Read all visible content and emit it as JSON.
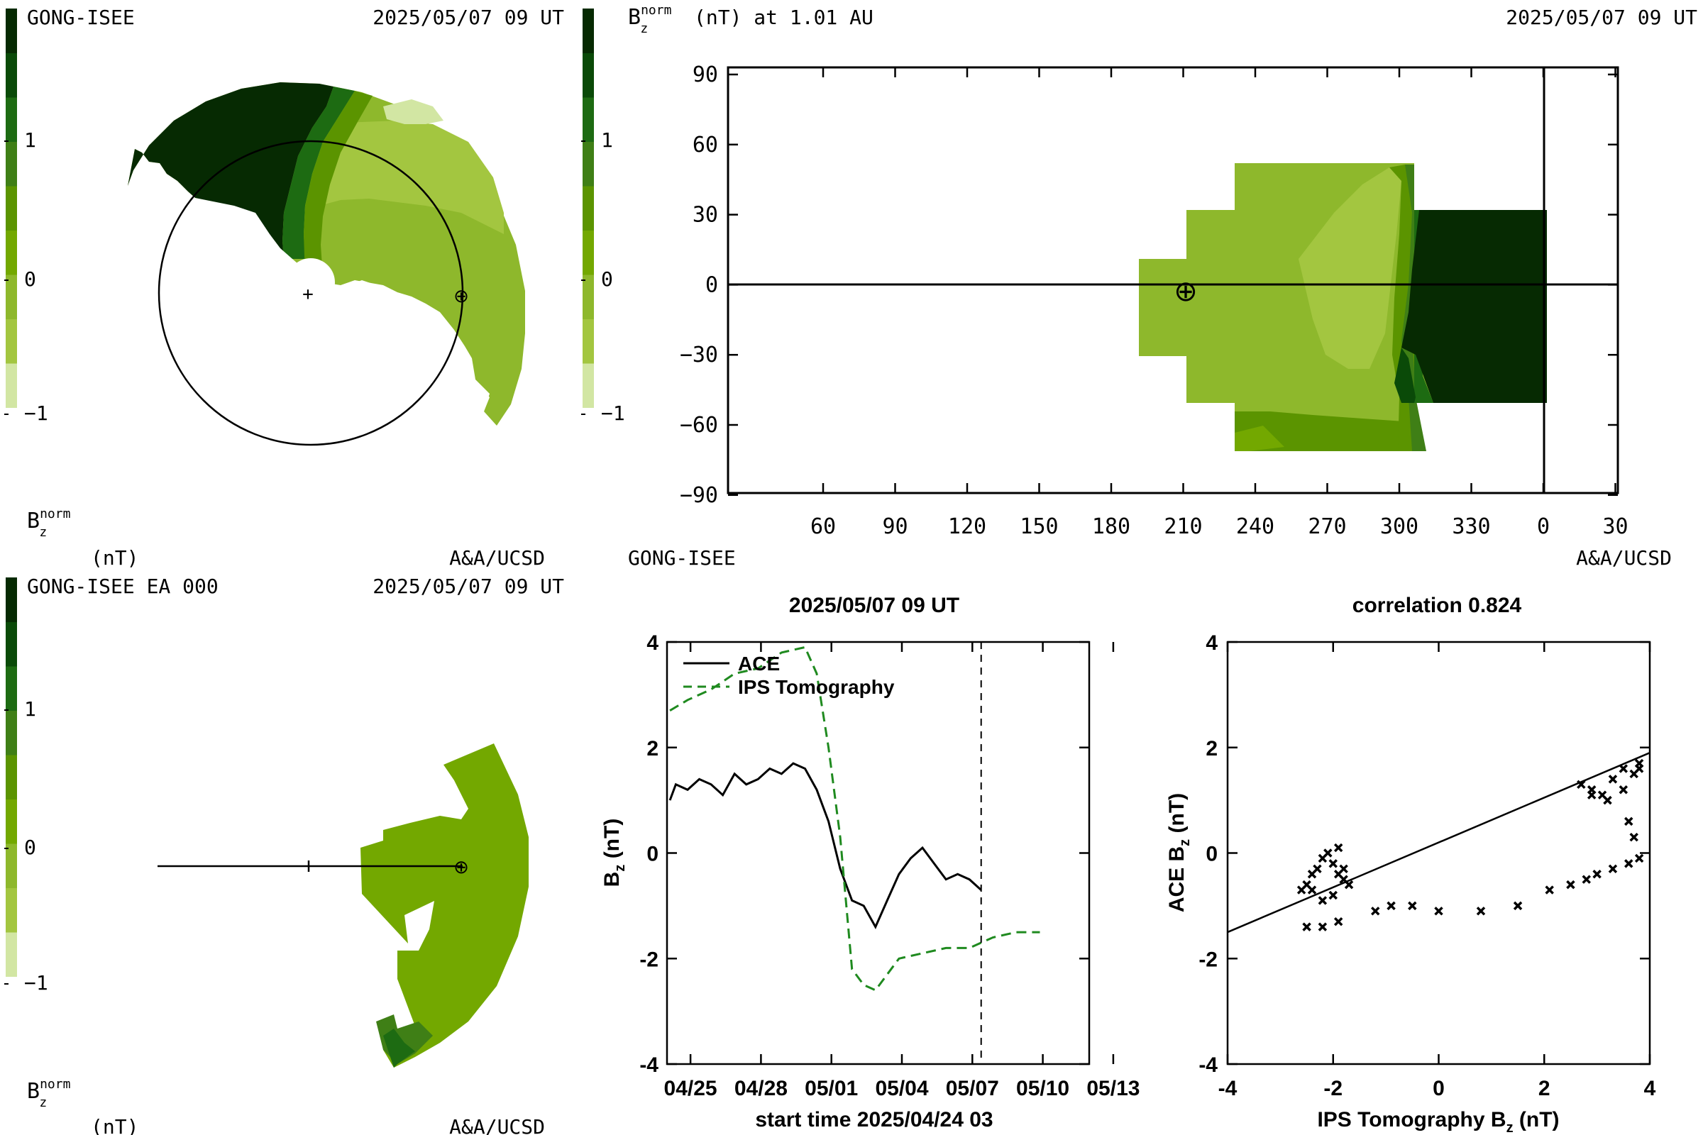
{
  "colors": {
    "scale": [
      "#d2e6a3",
      "#a3c640",
      "#8eb82c",
      "#73a800",
      "#5b9400",
      "#3f7f16",
      "#1d6b12",
      "#0a4a08",
      "#062a02"
    ],
    "ink": "#000000",
    "dash": "#1f8a1f"
  },
  "p1": {
    "label_left": "GONG-ISEE",
    "date": "2025/05/07 09 UT",
    "footer_unit": "(nT)",
    "footer_right": "A&A/UCSD",
    "cb_ticks": [
      "1",
      "0",
      "−1"
    ],
    "center_mark": "+",
    "earth_symbol": "⊕"
  },
  "p2": {
    "title_unit": "(nT) at 1.01 AU",
    "date": "2025/05/07 09 UT",
    "footer_left": "GONG-ISEE",
    "footer_right": "A&A/UCSD",
    "cb_ticks": [
      "1",
      "0",
      "−1"
    ],
    "y_ticks": [
      "90",
      "60",
      "30",
      "0",
      "−30",
      "−60",
      "−90"
    ],
    "x_ticks": [
      "60",
      "90",
      "120",
      "150",
      "180",
      "210",
      "240",
      "270",
      "300",
      "330",
      "0",
      "30"
    ],
    "earth_symbol": "⊕"
  },
  "p3": {
    "label_left": "GONG-ISEE EA 000",
    "date": "2025/05/07 09 UT",
    "footer_unit": "(nT)",
    "footer_right": "A&A/UCSD",
    "cb_ticks": [
      "1",
      "0",
      "−1"
    ],
    "earth_symbol": "⊕"
  },
  "chart_data": [
    {
      "type": "line",
      "title": "2025/05/07 09 UT",
      "xlabel": "start time 2025/04/24 03",
      "ylabel": "Bz (nT)",
      "x_tick_labels": [
        "04/25",
        "04/28",
        "05/01",
        "05/04",
        "05/07",
        "05/10",
        "05/13"
      ],
      "y_tick_labels": [
        "4",
        "2",
        "0",
        "-2",
        "-4"
      ],
      "ylim": [
        -4,
        4
      ],
      "legend_placement": "top-left",
      "series": [
        {
          "name": "ACE",
          "style": "solid",
          "x": [
            "04/24 03",
            "04/24 09",
            "04/24 21",
            "04/25 09",
            "04/25 21",
            "04/26 09",
            "04/26 21",
            "04/27 09",
            "04/27 21",
            "04/28 09",
            "04/28 21",
            "04/29 09",
            "04/29 21",
            "04/30 09",
            "04/30 21",
            "05/01 09",
            "05/01 21",
            "05/02 09",
            "05/02 21",
            "05/03 09",
            "05/03 21",
            "05/04 09",
            "05/04 21",
            "05/05 09",
            "05/05 21",
            "05/06 09",
            "05/06 21",
            "05/07 09"
          ],
          "values": [
            1.0,
            1.3,
            1.2,
            1.4,
            1.3,
            1.1,
            1.5,
            1.3,
            1.4,
            1.6,
            1.5,
            1.7,
            1.6,
            1.2,
            0.6,
            -0.3,
            -0.9,
            -1.0,
            -1.4,
            -0.9,
            -0.4,
            -0.1,
            0.1,
            -0.2,
            -0.5,
            -0.4,
            -0.5,
            -0.7
          ]
        },
        {
          "name": "IPS Tomography",
          "style": "dashed",
          "x": [
            "04/24 03",
            "04/24 21",
            "04/25 21",
            "04/26 21",
            "04/27 21",
            "04/28 21",
            "04/29 21",
            "04/30 09",
            "04/30 21",
            "05/01 09",
            "05/01 21",
            "05/02 09",
            "05/02 21",
            "05/03 09",
            "05/03 21",
            "05/04 21",
            "05/05 21",
            "05/06 21",
            "05/07 21",
            "05/08 21",
            "05/09 21"
          ],
          "values": [
            2.7,
            2.9,
            3.1,
            3.4,
            3.5,
            3.8,
            3.9,
            3.4,
            2.0,
            0.3,
            -2.2,
            -2.5,
            -2.6,
            -2.3,
            -2.0,
            -1.9,
            -1.8,
            -1.8,
            -1.6,
            -1.5,
            -1.5
          ]
        }
      ],
      "annotations": [
        "vertical dashed line at 05/07 09"
      ]
    },
    {
      "type": "scatter",
      "title": "correlation 0.824",
      "xlabel": "IPS Tomography Bz (nT)",
      "ylabel": "ACE Bz (nT)",
      "xlim": [
        -4,
        4
      ],
      "ylim": [
        -4,
        4
      ],
      "x_tick_labels": [
        "-4",
        "-2",
        "0",
        "2",
        "4"
      ],
      "y_tick_labels": [
        "4",
        "2",
        "0",
        "-2",
        "-4"
      ],
      "x": [
        -2.6,
        -2.5,
        -2.4,
        -2.3,
        -2.2,
        -2.1,
        -2.0,
        -1.9,
        -1.9,
        -1.8,
        -1.7,
        -1.8,
        -2.0,
        -2.2,
        -2.4,
        -2.5,
        -2.2,
        -1.9,
        -1.2,
        -0.9,
        -0.5,
        0.0,
        0.8,
        1.5,
        2.1,
        2.5,
        2.8,
        3.0,
        3.3,
        3.6,
        3.8,
        2.7,
        2.9,
        3.1,
        3.3,
        3.5,
        3.7,
        3.8,
        3.5,
        3.2,
        2.9,
        3.6,
        3.7,
        3.8
      ],
      "y": [
        -0.7,
        -0.6,
        -0.4,
        -0.3,
        -0.1,
        0.0,
        -0.2,
        0.1,
        -0.4,
        -0.5,
        -0.6,
        -0.3,
        -0.8,
        -0.9,
        -0.7,
        -1.4,
        -1.4,
        -1.3,
        -1.1,
        -1.0,
        -1.0,
        -1.1,
        -1.1,
        -1.0,
        -0.7,
        -0.6,
        -0.5,
        -0.4,
        -0.3,
        -0.2,
        -0.1,
        1.3,
        1.2,
        1.1,
        1.4,
        1.2,
        1.5,
        1.7,
        1.6,
        1.0,
        1.1,
        0.6,
        0.3,
        1.6
      ],
      "fit_line": {
        "from": [
          -4,
          -1.5
        ],
        "to": [
          4,
          1.9
        ]
      }
    }
  ]
}
